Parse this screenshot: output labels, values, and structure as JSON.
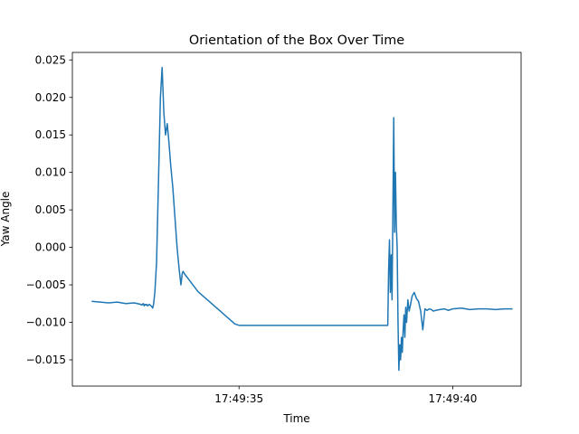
{
  "chart_data": {
    "type": "line",
    "title": "Orientation of the Box Over Time",
    "xlabel": "Time",
    "ylabel": "Yaw Angle",
    "x_unit": "seconds",
    "xlim": [
      31.1,
      41.6
    ],
    "ylim": [
      -0.0185,
      0.026
    ],
    "x_ticks": [
      {
        "value": 35,
        "label": "17:49:35"
      },
      {
        "value": 40,
        "label": "17:49:40"
      }
    ],
    "y_ticks": [
      {
        "value": -0.015,
        "label": "−0.015"
      },
      {
        "value": -0.01,
        "label": "−0.010"
      },
      {
        "value": -0.005,
        "label": "−0.005"
      },
      {
        "value": 0.0,
        "label": "0.000"
      },
      {
        "value": 0.005,
        "label": "0.005"
      },
      {
        "value": 0.01,
        "label": "0.010"
      },
      {
        "value": 0.015,
        "label": "0.015"
      },
      {
        "value": 0.02,
        "label": "0.020"
      },
      {
        "value": 0.025,
        "label": "0.025"
      }
    ],
    "grid": false,
    "series": [
      {
        "color": "#1f77b4",
        "x": [
          31.55,
          31.75,
          31.95,
          32.15,
          32.35,
          32.55,
          32.7,
          32.72,
          32.74,
          32.76,
          32.78,
          32.8,
          32.82,
          32.84,
          32.86,
          32.88,
          32.9,
          32.92,
          32.94,
          32.96,
          32.98,
          33.0,
          33.03,
          33.07,
          33.12,
          33.16,
          33.2,
          33.24,
          33.28,
          33.32,
          33.36,
          33.4,
          33.45,
          33.5,
          33.55,
          33.6,
          33.64,
          33.67,
          33.69,
          33.72,
          33.76,
          33.8,
          33.84,
          33.88,
          33.92,
          33.96,
          34.0,
          34.04,
          34.1,
          34.2,
          34.3,
          34.4,
          34.5,
          34.6,
          34.7,
          34.8,
          34.9,
          35.0,
          35.2,
          35.4,
          35.6,
          35.8,
          36.0,
          36.2,
          36.4,
          36.6,
          36.8,
          37.0,
          37.2,
          37.4,
          37.6,
          37.8,
          38.0,
          38.2,
          38.3,
          38.4,
          38.45,
          38.48,
          38.5,
          38.52,
          38.54,
          38.56,
          38.58,
          38.6,
          38.62,
          38.64,
          38.66,
          38.68,
          38.7,
          38.72,
          38.74,
          38.76,
          38.78,
          38.8,
          38.82,
          38.84,
          38.86,
          38.88,
          38.9,
          38.92,
          38.95,
          38.98,
          39.0,
          39.05,
          39.1,
          39.15,
          39.2,
          39.25,
          39.3,
          39.35,
          39.4,
          39.45,
          39.5,
          39.55,
          39.6,
          39.7,
          39.8,
          39.9,
          40.0,
          40.2,
          40.4,
          40.6,
          40.8,
          41.0,
          41.2,
          41.4
        ],
        "y": [
          -0.0072,
          -0.0073,
          -0.0074,
          -0.0073,
          -0.0075,
          -0.0074,
          -0.0076,
          -0.0077,
          -0.0076,
          -0.0075,
          -0.0078,
          -0.0076,
          -0.0077,
          -0.0076,
          -0.0078,
          -0.0077,
          -0.0076,
          -0.0077,
          -0.0078,
          -0.0079,
          -0.0081,
          -0.0076,
          -0.006,
          -0.002,
          0.01,
          0.02,
          0.024,
          0.018,
          0.015,
          0.0165,
          0.014,
          0.011,
          0.008,
          0.004,
          0.0,
          -0.003,
          -0.005,
          -0.0035,
          -0.0032,
          -0.0035,
          -0.0038,
          -0.0041,
          -0.0044,
          -0.0047,
          -0.005,
          -0.0053,
          -0.0056,
          -0.0059,
          -0.0062,
          -0.0067,
          -0.0072,
          -0.0077,
          -0.0082,
          -0.0087,
          -0.0092,
          -0.0097,
          -0.0102,
          -0.0104,
          -0.0104,
          -0.0104,
          -0.0104,
          -0.0104,
          -0.0104,
          -0.0104,
          -0.0104,
          -0.0104,
          -0.0104,
          -0.0104,
          -0.0104,
          -0.0104,
          -0.0104,
          -0.0104,
          -0.0104,
          -0.0104,
          -0.0104,
          -0.0104,
          -0.0104,
          -0.0104,
          -0.003,
          0.001,
          -0.006,
          -0.001,
          -0.007,
          0.005,
          0.0173,
          0.002,
          0.01,
          0.003,
          0.0,
          -0.01,
          -0.0164,
          -0.013,
          -0.015,
          -0.012,
          -0.014,
          -0.011,
          -0.009,
          -0.012,
          -0.008,
          -0.01,
          -0.007,
          -0.0085,
          -0.008,
          -0.0065,
          -0.006,
          -0.0068,
          -0.0072,
          -0.0085,
          -0.011,
          -0.0082,
          -0.0084,
          -0.0082,
          -0.0083,
          -0.0085,
          -0.0084,
          -0.0083,
          -0.0082,
          -0.0084,
          -0.0082,
          -0.0081,
          -0.0083,
          -0.0082,
          -0.0082,
          -0.0083,
          -0.0082,
          -0.0082
        ]
      }
    ]
  }
}
